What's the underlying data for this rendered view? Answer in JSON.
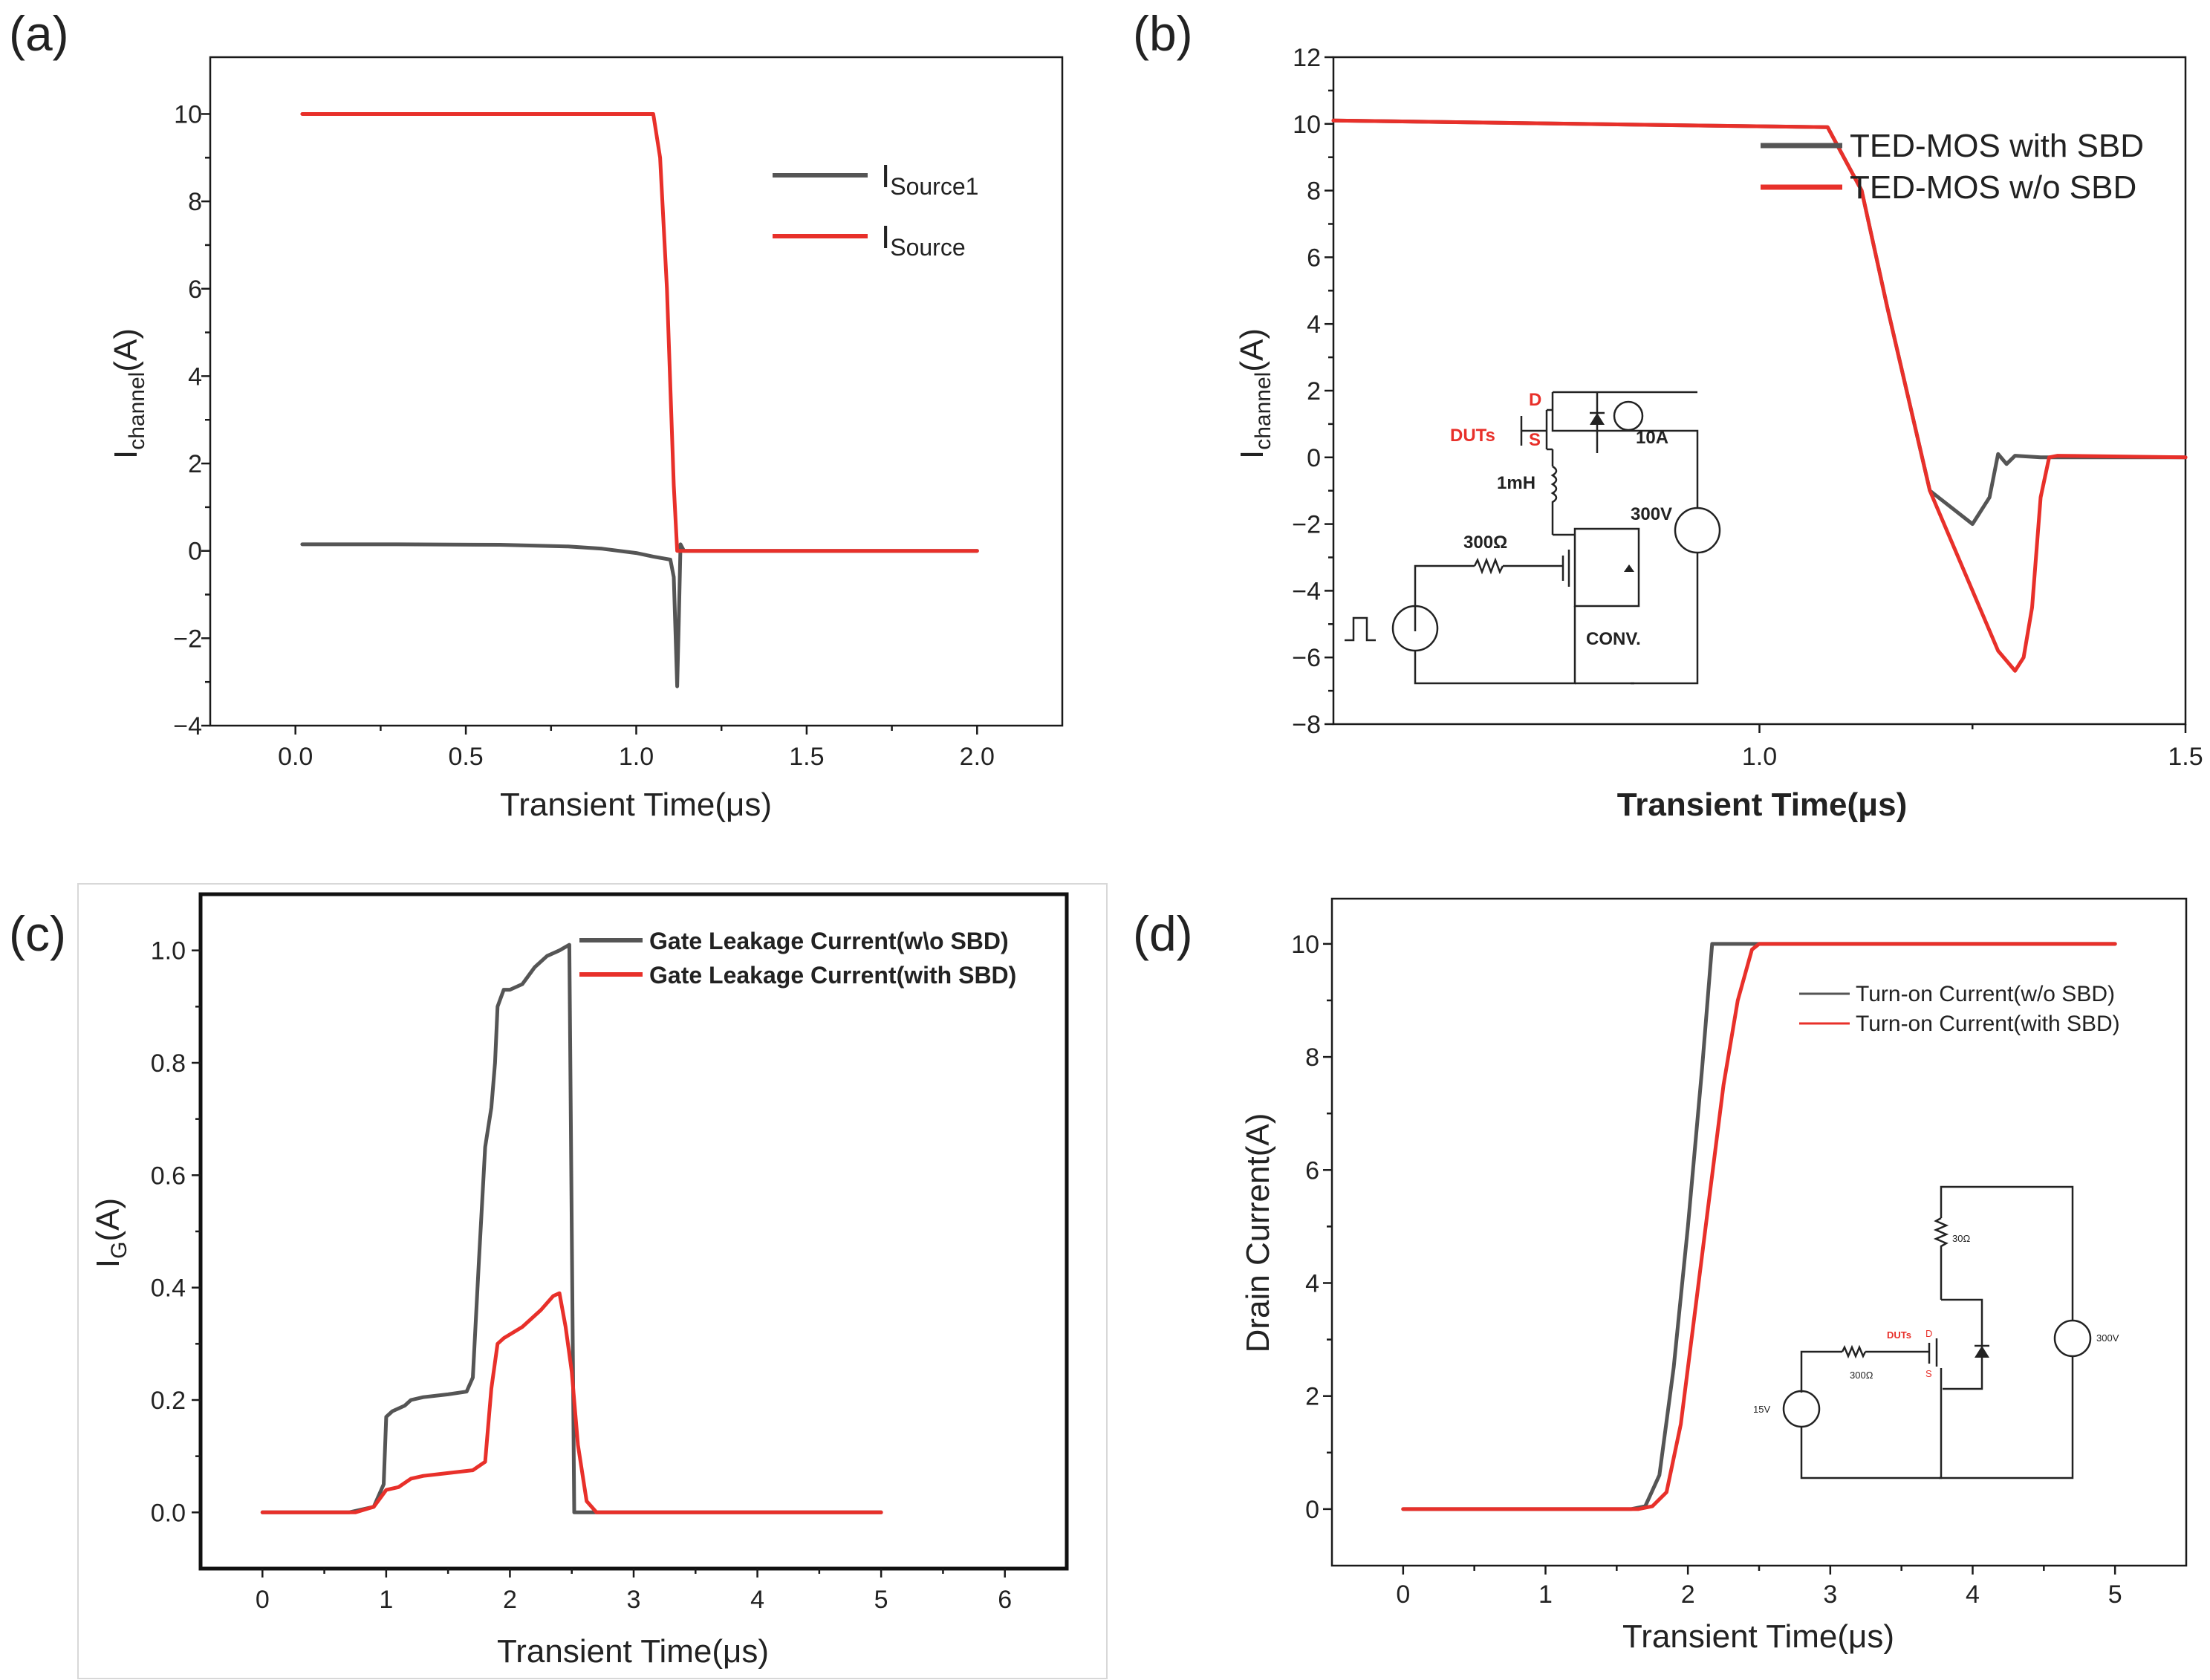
{
  "colors": {
    "series_a": "#555555",
    "series_b": "#e8302a",
    "text_red": "#e8302a"
  },
  "panels": [
    {
      "label": "(a)"
    },
    {
      "label": "(b)"
    },
    {
      "label": "(c)"
    },
    {
      "label": "(d)"
    }
  ],
  "chart_data": [
    {
      "id": "a",
      "type": "line",
      "xlabel": "Transient Time(μs)",
      "ylabel_main": "I",
      "ylabel_sub": "channel",
      "ylabel_tail": "(A)",
      "xlim": [
        -0.25,
        2.25
      ],
      "ylim": [
        -4,
        11.3
      ],
      "xticks": [
        0.0,
        0.5,
        1.0,
        1.5,
        2.0
      ],
      "xtick_labels": [
        "0.0",
        "0.5",
        "1.0",
        "1.5",
        "2.0"
      ],
      "yticks": [
        -4,
        -2,
        0,
        2,
        4,
        6,
        8,
        10
      ],
      "ytick_labels": [
        "−4",
        "−2",
        "0",
        "2",
        "4",
        "6",
        "8",
        "10"
      ],
      "legend": [
        {
          "main": "I",
          "sub": "Source1"
        },
        {
          "main": "I",
          "sub": "Source"
        }
      ],
      "series": [
        {
          "name": "ISource1",
          "color": "#555555",
          "x": [
            0.02,
            0.3,
            0.6,
            0.8,
            0.9,
            1.0,
            1.05,
            1.1,
            1.11,
            1.12,
            1.125,
            1.13,
            1.14,
            1.17,
            2.0
          ],
          "y": [
            0.15,
            0.15,
            0.14,
            0.1,
            0.05,
            -0.05,
            -0.13,
            -0.2,
            -0.6,
            -3.1,
            -1.5,
            0.15,
            0.0,
            0.0,
            0.0
          ]
        },
        {
          "name": "ISource",
          "color": "#e8302a",
          "x": [
            0.02,
            1.05,
            1.07,
            1.09,
            1.11,
            1.12,
            1.15,
            2.0
          ],
          "y": [
            10.0,
            10.0,
            9.0,
            6.0,
            1.5,
            0.0,
            0.0,
            0.0
          ]
        }
      ]
    },
    {
      "id": "b",
      "type": "line",
      "xlabel": "Transient Time(μs)",
      "ylabel_main": "I",
      "ylabel_sub": "channel",
      "ylabel_tail": "(A)",
      "xlim": [
        0.5,
        1.5
      ],
      "ylim": [
        -8,
        12
      ],
      "xticks": [
        1.0,
        1.5
      ],
      "xtick_labels": [
        "1.0",
        "1.5"
      ],
      "yticks": [
        -8,
        -6,
        -4,
        -2,
        0,
        2,
        4,
        6,
        8,
        10,
        12
      ],
      "ytick_labels": [
        "−8",
        "−6",
        "−4",
        "−2",
        "0",
        "2",
        "4",
        "6",
        "8",
        "10",
        "12"
      ],
      "legend": [
        {
          "main": "TED-MOS with SBD"
        },
        {
          "main": "TED-MOS w/o SBD"
        }
      ],
      "series": [
        {
          "name": "TED-MOS with SBD",
          "color": "#555555",
          "x": [
            0.5,
            1.08,
            1.12,
            1.15,
            1.2,
            1.25,
            1.27,
            1.28,
            1.29,
            1.3,
            1.33,
            1.5
          ],
          "y": [
            10.1,
            9.9,
            8.0,
            4.5,
            -1.0,
            -2.0,
            -1.2,
            0.1,
            -0.2,
            0.05,
            0.0,
            0.0
          ]
        },
        {
          "name": "TED-MOS w/o SBD",
          "color": "#e8302a",
          "x": [
            0.5,
            1.08,
            1.12,
            1.15,
            1.2,
            1.25,
            1.28,
            1.3,
            1.31,
            1.32,
            1.33,
            1.34,
            1.35,
            1.5
          ],
          "y": [
            10.1,
            9.9,
            8.0,
            4.5,
            -1.0,
            -4.0,
            -5.8,
            -6.4,
            -6.0,
            -4.5,
            -1.2,
            0.0,
            0.05,
            0.0
          ]
        }
      ],
      "inset": {
        "label_d": "D",
        "label_s": "S",
        "label_duts": "DUTs",
        "label_10a": "10A",
        "label_1mh": "1mH",
        "label_300v": "300V",
        "label_300ohm": "300Ω",
        "label_conv": "CONV."
      }
    },
    {
      "id": "c",
      "type": "line",
      "xlabel": "Transient Time(μs)",
      "ylabel_main": "I",
      "ylabel_sub": "G",
      "ylabel_tail": "(A)",
      "xlim": [
        -0.5,
        6.5
      ],
      "ylim": [
        -0.1,
        1.1
      ],
      "xticks": [
        0,
        1,
        2,
        3,
        4,
        5,
        6
      ],
      "xtick_labels": [
        "0",
        "1",
        "2",
        "3",
        "4",
        "5",
        "6"
      ],
      "yticks": [
        0.0,
        0.2,
        0.4,
        0.6,
        0.8,
        1.0
      ],
      "ytick_labels": [
        "0.0",
        "0.2",
        "0.4",
        "0.6",
        "0.8",
        "1.0"
      ],
      "legend": [
        {
          "main": "Gate Leakage Current(w\\o SBD)"
        },
        {
          "main": "Gate Leakage Current(with SBD)"
        }
      ],
      "series": [
        {
          "name": "Gate Leakage Current(w\\o SBD)",
          "color": "#555555",
          "x": [
            0,
            0.7,
            0.9,
            0.98,
            1.0,
            1.05,
            1.15,
            1.2,
            1.3,
            1.5,
            1.65,
            1.7,
            1.75,
            1.8,
            1.85,
            1.88,
            1.9,
            1.95,
            2.0,
            2.1,
            2.2,
            2.3,
            2.4,
            2.48,
            2.5,
            2.52,
            2.6,
            5.0
          ],
          "y": [
            0,
            0,
            0.01,
            0.05,
            0.17,
            0.18,
            0.19,
            0.2,
            0.205,
            0.21,
            0.215,
            0.24,
            0.45,
            0.65,
            0.72,
            0.8,
            0.9,
            0.93,
            0.93,
            0.94,
            0.97,
            0.99,
            1.0,
            1.01,
            0.5,
            0.0,
            0.0,
            0.0
          ]
        },
        {
          "name": "Gate Leakage Current(with SBD)",
          "color": "#e8302a",
          "x": [
            0,
            0.75,
            0.9,
            1.0,
            1.1,
            1.2,
            1.3,
            1.5,
            1.7,
            1.8,
            1.85,
            1.9,
            1.95,
            2.1,
            2.25,
            2.35,
            2.4,
            2.45,
            2.5,
            2.55,
            2.62,
            2.7,
            5.0
          ],
          "y": [
            0,
            0,
            0.01,
            0.04,
            0.045,
            0.06,
            0.065,
            0.07,
            0.075,
            0.09,
            0.22,
            0.3,
            0.31,
            0.33,
            0.36,
            0.385,
            0.39,
            0.33,
            0.25,
            0.12,
            0.02,
            0.0,
            0.0
          ]
        }
      ]
    },
    {
      "id": "d",
      "type": "line",
      "xlabel": "Transient Time(μs)",
      "ylabel_main": "Drain Current(A)",
      "ylabel_sub": "",
      "ylabel_tail": "",
      "xlim": [
        -0.5,
        5.5
      ],
      "ylim": [
        -1.0,
        10.8
      ],
      "xticks": [
        0,
        1,
        2,
        3,
        4,
        5
      ],
      "xtick_labels": [
        "0",
        "1",
        "2",
        "3",
        "4",
        "5"
      ],
      "yticks": [
        0,
        2,
        4,
        6,
        8,
        10
      ],
      "ytick_labels": [
        "0",
        "2",
        "4",
        "6",
        "8",
        "10"
      ],
      "legend": [
        {
          "main": "Turn-on Current(w/o SBD)"
        },
        {
          "main": "Turn-on Current(with SBD)"
        }
      ],
      "series": [
        {
          "name": "Turn-on Current(w/o SBD)",
          "color": "#555555",
          "x": [
            0,
            1.6,
            1.7,
            1.8,
            1.9,
            2.0,
            2.1,
            2.17,
            2.2,
            5.0
          ],
          "y": [
            0,
            0,
            0.05,
            0.6,
            2.5,
            5.0,
            7.8,
            10.0,
            10.0,
            10.0
          ]
        },
        {
          "name": "Turn-on Current(with SBD)",
          "color": "#e8302a",
          "x": [
            0,
            1.65,
            1.75,
            1.85,
            1.95,
            2.05,
            2.15,
            2.25,
            2.35,
            2.45,
            2.5,
            5.0
          ],
          "y": [
            0,
            0,
            0.05,
            0.3,
            1.5,
            3.5,
            5.5,
            7.5,
            9.0,
            9.9,
            10.0,
            10.0
          ]
        }
      ],
      "inset": {
        "label_30ohm": "30Ω",
        "label_duts": "DUTs",
        "label_d": "D",
        "label_s": "S",
        "label_300ohm": "300Ω",
        "label_15v": "15V",
        "label_300v": "300V"
      }
    }
  ]
}
